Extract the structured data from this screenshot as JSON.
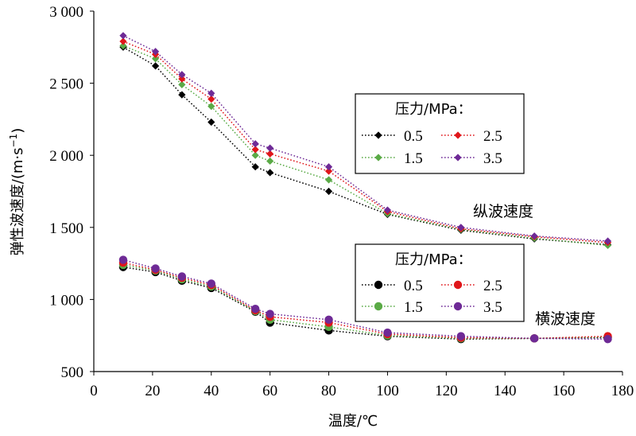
{
  "chart_data": {
    "type": "line",
    "xlabel": "温度/℃",
    "ylabel": "弹性波速度/(m·s",
    "ylabel_sup": "−1",
    "ylabel_close": ")",
    "xlim": [
      0,
      180
    ],
    "ylim": [
      500,
      3000
    ],
    "x_ticks": [
      0,
      20,
      40,
      60,
      80,
      100,
      120,
      140,
      160,
      180
    ],
    "x_tick_labels": [
      "0",
      "20",
      "40",
      "60",
      "80",
      "100",
      "120",
      "140",
      "160",
      "180"
    ],
    "y_ticks": [
      500,
      1000,
      1500,
      2000,
      2500,
      3000
    ],
    "y_tick_labels": [
      "500",
      "1 000",
      "1 500",
      "2 000",
      "2 500",
      "3 000"
    ],
    "grid": false,
    "x": [
      10,
      21,
      30,
      40,
      55,
      60,
      80,
      100,
      125,
      150,
      175
    ],
    "groups": [
      {
        "name": "纵波速度",
        "marker": "diamond",
        "legend_title": "压力/MPa：",
        "series": [
          {
            "name": "0.5",
            "color": "#000000",
            "values": [
              2750,
              2620,
              2420,
              2230,
              1920,
              1880,
              1750,
              1590,
              1480,
              1420,
              1380
            ]
          },
          {
            "name": "1.5",
            "color": "#5aaa46",
            "values": [
              2760,
              2670,
              2490,
              2340,
              2000,
              1960,
              1830,
              1595,
              1485,
              1425,
              1375
            ]
          },
          {
            "name": "2.5",
            "color": "#e0161a",
            "values": [
              2790,
              2700,
              2530,
              2390,
              2040,
              2010,
              1890,
              1610,
              1490,
              1435,
              1395
            ]
          },
          {
            "name": "3.5",
            "color": "#6e2a96",
            "values": [
              2830,
              2720,
              2560,
              2430,
              2080,
              2050,
              1920,
              1620,
              1500,
              1440,
              1405
            ]
          }
        ]
      },
      {
        "name": "横波速度",
        "marker": "circle",
        "legend_title": "压力/MPa：",
        "series": [
          {
            "name": "0.5",
            "color": "#000000",
            "values": [
              1225,
              1190,
              1130,
              1080,
              915,
              840,
              785,
              745,
              725,
              730,
              735
            ]
          },
          {
            "name": "1.5",
            "color": "#5aaa46",
            "values": [
              1240,
              1200,
              1140,
              1090,
              920,
              860,
              810,
              750,
              730,
              730,
              740
            ]
          },
          {
            "name": "2.5",
            "color": "#e0161a",
            "values": [
              1255,
              1205,
              1150,
              1100,
              925,
              880,
              840,
              760,
              735,
              730,
              745
            ]
          },
          {
            "name": "3.5",
            "color": "#6e2a96",
            "values": [
              1275,
              1215,
              1160,
              1110,
              935,
              900,
              860,
              770,
              745,
              730,
              725
            ]
          }
        ]
      }
    ]
  }
}
